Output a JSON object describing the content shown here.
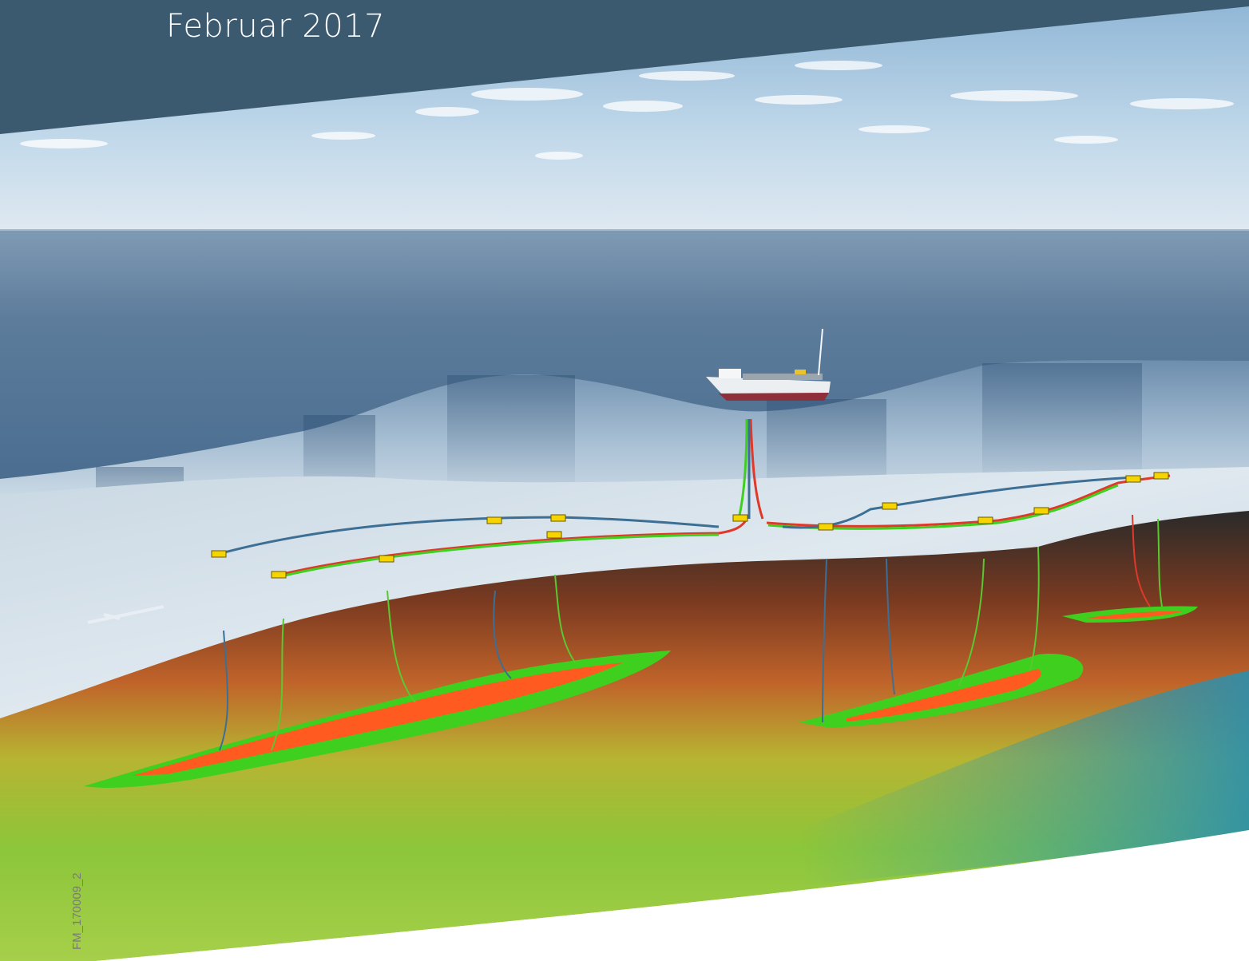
{
  "header": {
    "date": "Februar 2017",
    "background_color": "#3b5a70"
  },
  "illustration": {
    "subject": "offshore-field-cross-section",
    "figure_code": "FM_170009_2",
    "colors": {
      "sky": "#bcd6ea",
      "sea": "#5f7f9e",
      "seabed": "#d6e3ec",
      "reservoir_hot": "#ff5a1f",
      "reservoir_green": "#4ccf2a",
      "pipeline_blue": "#3d6f95",
      "template": "#f5d400"
    }
  }
}
